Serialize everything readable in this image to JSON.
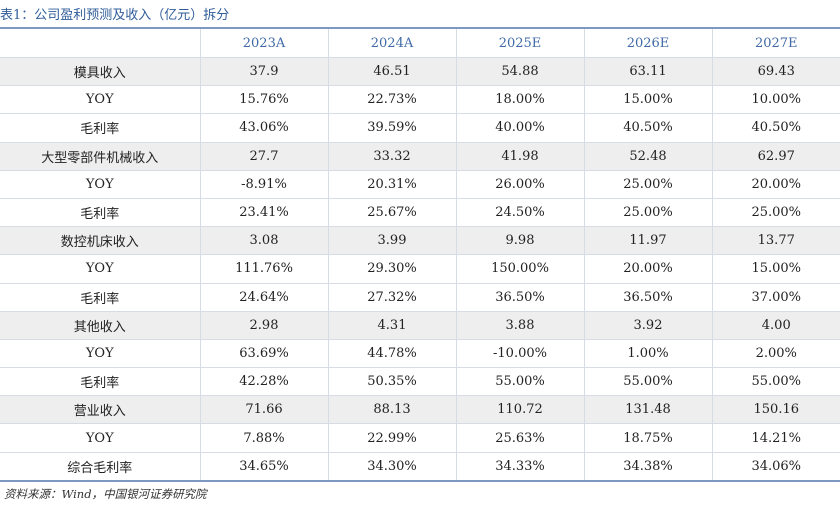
{
  "title": "表1：公司盈利预测及收入（亿元）拆分",
  "table": {
    "header": [
      "",
      "2023A",
      "2024A",
      "2025E",
      "2026E",
      "2027E"
    ],
    "rows": [
      [
        "模具收入",
        "37.9",
        "46.51",
        "54.88",
        "63.11",
        "69.43"
      ],
      [
        "YOY",
        "15.76%",
        "22.73%",
        "18.00%",
        "15.00%",
        "10.00%"
      ],
      [
        "毛利率",
        "43.06%",
        "39.59%",
        "40.00%",
        "40.50%",
        "40.50%"
      ],
      [
        "大型零部件机械收入",
        "27.7",
        "33.32",
        "41.98",
        "52.48",
        "62.97"
      ],
      [
        "YOY",
        "-8.91%",
        "20.31%",
        "26.00%",
        "25.00%",
        "20.00%"
      ],
      [
        "毛利率",
        "23.41%",
        "25.67%",
        "24.50%",
        "25.00%",
        "25.00%"
      ],
      [
        "数控机床收入",
        "3.08",
        "3.99",
        "9.98",
        "11.97",
        "13.77"
      ],
      [
        "YOY",
        "111.76%",
        "29.30%",
        "150.00%",
        "20.00%",
        "15.00%"
      ],
      [
        "毛利率",
        "24.64%",
        "27.32%",
        "36.50%",
        "36.50%",
        "37.00%"
      ],
      [
        "其他收入",
        "2.98",
        "4.31",
        "3.88",
        "3.92",
        "4.00"
      ],
      [
        "YOY",
        "63.69%",
        "44.78%",
        "-10.00%",
        "1.00%",
        "2.00%"
      ],
      [
        "毛利率",
        "42.28%",
        "50.35%",
        "55.00%",
        "55.00%",
        "55.00%"
      ],
      [
        "营业收入",
        "71.66",
        "88.13",
        "110.72",
        "131.48",
        "150.16"
      ],
      [
        "YOY",
        "7.88%",
        "22.99%",
        "25.63%",
        "18.75%",
        "14.21%"
      ],
      [
        "综合毛利率",
        "34.65%",
        "34.30%",
        "34.33%",
        "34.38%",
        "34.06%"
      ]
    ]
  },
  "source": "资料来源：Wind，中国银河证券研究院"
}
